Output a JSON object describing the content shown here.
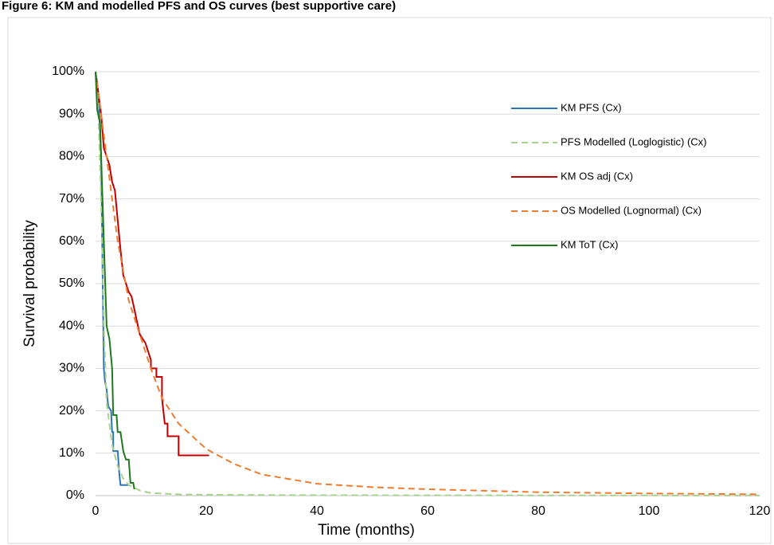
{
  "chart_data": {
    "type": "line",
    "title": "Figure 6: KM and modelled PFS and OS curves (best supportive care)",
    "x_label": "Time (months)",
    "y_label": "Survival probability",
    "xlim": [
      0,
      120
    ],
    "xticks": [
      0,
      20,
      40,
      60,
      80,
      100,
      120
    ],
    "ylim": [
      0,
      100
    ],
    "yticks": [
      {
        "value": 0,
        "label": "0%"
      },
      {
        "value": 10,
        "label": "10%"
      },
      {
        "value": 20,
        "label": "20%"
      },
      {
        "value": 30,
        "label": "30%"
      },
      {
        "value": 40,
        "label": "40%"
      },
      {
        "value": 50,
        "label": "50%"
      },
      {
        "value": 60,
        "label": "60%"
      },
      {
        "value": 70,
        "label": "70%"
      },
      {
        "value": 80,
        "label": "80%"
      },
      {
        "value": 90,
        "label": "90%"
      },
      {
        "value": 100,
        "label": "100%"
      }
    ],
    "grid": true,
    "legend": "upper right",
    "series": [
      {
        "name": "KM PFS (Cx)",
        "color": "#2e75b6",
        "style": "solid",
        "x": [
          0,
          0.5,
          1,
          1.3,
          1.5,
          1.7,
          2,
          2.3,
          2.8,
          3,
          3.2,
          3.2,
          4,
          4.3,
          4.5,
          6
        ],
        "values": [
          100,
          95,
          80,
          50,
          30,
          27,
          25,
          21,
          20,
          15,
          15,
          10.5,
          10.5,
          5,
          2.5,
          2.5
        ]
      },
      {
        "name": "PFS Modelled (Loglogistic) (Cx)",
        "color": "#a9d18e",
        "style": "dashed",
        "x": [
          0,
          0.5,
          1,
          1.5,
          2,
          3,
          4,
          5,
          6,
          8,
          10,
          15,
          20,
          40,
          80,
          120
        ],
        "values": [
          100,
          90,
          70,
          40,
          22,
          12,
          7,
          4,
          2.5,
          1.2,
          0.6,
          0.3,
          0.2,
          0.1,
          0.05,
          0.02
        ]
      },
      {
        "name": "KM OS adj (Cx)",
        "color": "#c00000",
        "style": "solid",
        "x": [
          0,
          1,
          1.5,
          2,
          2.5,
          3,
          3.5,
          4,
          4.5,
          5,
          5.5,
          6,
          6.5,
          7,
          7.5,
          8,
          9,
          10,
          10,
          11,
          11,
          12,
          12,
          12.5,
          13,
          13,
          13.5,
          15,
          15,
          20.5
        ],
        "values": [
          100,
          90,
          82,
          80,
          78,
          74,
          72,
          65,
          58,
          52,
          50,
          48,
          47,
          44,
          41,
          38,
          36,
          32,
          30,
          30,
          28,
          28,
          23,
          17,
          17,
          14,
          14,
          14,
          9.5,
          9.5
        ]
      },
      {
        "name": "OS Modelled (Lognormal) (Cx)",
        "color": "#ed7d31",
        "style": "dashed",
        "x": [
          0,
          1,
          2,
          3,
          4,
          5,
          6,
          8,
          10,
          12,
          15,
          20,
          25,
          30,
          40,
          50,
          60,
          80,
          100,
          120
        ],
        "values": [
          100,
          90,
          80,
          70,
          60,
          53,
          46,
          38,
          30,
          23,
          17,
          11,
          7.5,
          5,
          2.8,
          2,
          1.5,
          0.8,
          0.5,
          0.3
        ]
      },
      {
        "name": "KM ToT (Cx)",
        "color": "#1f7a1f",
        "style": "solid",
        "x": [
          0,
          0.3,
          0.8,
          1,
          1.5,
          2,
          2.5,
          3,
          3.2,
          3.8,
          4,
          4.5,
          5,
          5.5,
          6,
          6.3,
          6.8,
          7
        ],
        "values": [
          100,
          91,
          88,
          80,
          60,
          40,
          37,
          30,
          19,
          19,
          15,
          15,
          10.5,
          8.5,
          8.5,
          3,
          3,
          1.5
        ]
      }
    ]
  }
}
